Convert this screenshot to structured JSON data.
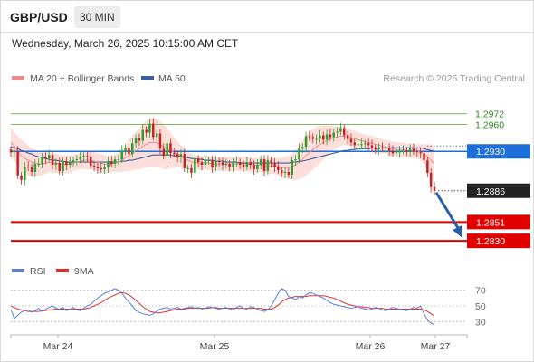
{
  "header": {
    "pair": "GBP/USD",
    "timeframe": "30 MIN",
    "datetime": "Wednesday, March 26, 2025 10:15:00 AM CET"
  },
  "legend": {
    "ma20_label": "MA 20 + Bollinger Bands",
    "ma50_label": "MA 50",
    "credit": "Research © 2025 Trading Central",
    "rsi_label": "RSI",
    "rsi_ma_label": "9MA"
  },
  "colors": {
    "ma20": "#f08a8a",
    "ma50": "#3a5f9e",
    "bollinger_fill": "#fbd9d4",
    "candle_up": "#2e9e2e",
    "candle_down": "#c92020",
    "resistance_line": "#6ab04c",
    "support_line": "#e00000",
    "current_level": "#1e6fd9",
    "forecast_arrow": "#2a5ea8",
    "last_price": "#222222",
    "rsi": "#5b7fd6",
    "rsi_ma": "#e03030"
  },
  "chart_data": [
    {
      "type": "candlestick",
      "title": "GBP/USD",
      "x_ticks": [
        "Mar 24",
        "Mar 25",
        "Mar 26",
        "Mar 27"
      ],
      "y_range": [
        1.2818,
        1.2998
      ],
      "price_levels": [
        {
          "kind": "resistance",
          "value": "1.2972"
        },
        {
          "kind": "resistance",
          "value": "1.2960"
        },
        {
          "kind": "current",
          "value": "1.2930"
        },
        {
          "kind": "last",
          "value": "1.2886"
        },
        {
          "kind": "support",
          "value": "1.2851"
        },
        {
          "kind": "support",
          "value": "1.2830"
        }
      ],
      "forecast": {
        "direction": "down",
        "from": 1.2886,
        "to": 1.283
      },
      "closes": [
        1.2929,
        1.293,
        1.2903,
        1.2898,
        1.2913,
        1.2912,
        1.2907,
        1.2916,
        1.2916,
        1.2924,
        1.2922,
        1.2926,
        1.2915,
        1.2917,
        1.2908,
        1.2919,
        1.2915,
        1.2918,
        1.292,
        1.2921,
        1.2924,
        1.2925,
        1.2924,
        1.2914,
        1.2913,
        1.2911,
        1.291,
        1.2912,
        1.2919,
        1.2916,
        1.2921,
        1.2921,
        1.2931,
        1.2934,
        1.2927,
        1.2939,
        1.2945,
        1.2942,
        1.2954,
        1.2951,
        1.2961,
        1.2946,
        1.295,
        1.2933,
        1.2925,
        1.2939,
        1.2928,
        1.2927,
        1.2923,
        1.2927,
        1.2911,
        1.2911,
        1.2906,
        1.2922,
        1.2918,
        1.2915,
        1.292,
        1.292,
        1.2912,
        1.2919,
        1.2918,
        1.2915,
        1.2916,
        1.2913,
        1.2917,
        1.2918,
        1.2915,
        1.2913,
        1.2918,
        1.2915,
        1.291,
        1.2915,
        1.2921,
        1.2908,
        1.292,
        1.2917,
        1.2913,
        1.2909,
        1.2906,
        1.2907,
        1.2904,
        1.292,
        1.2921,
        1.2933,
        1.2935,
        1.2947,
        1.2946,
        1.2944,
        1.2944,
        1.2948,
        1.2943,
        1.2949,
        1.2946,
        1.2951,
        1.2952,
        1.2956,
        1.2948,
        1.2944,
        1.294,
        1.2937,
        1.2938,
        1.2938,
        1.2939,
        1.2937,
        1.2934,
        1.2932,
        1.2934,
        1.2933,
        1.2934,
        1.2931,
        1.2928,
        1.2929,
        1.2931,
        1.2931,
        1.293,
        1.2933,
        1.293,
        1.2929,
        1.2928,
        1.292,
        1.2906,
        1.289,
        1.2886
      ],
      "ma20": [
        1.294,
        1.2936,
        1.293,
        1.2925,
        1.2922,
        1.292,
        1.2918,
        1.2917,
        1.2916,
        1.2916,
        1.2917,
        1.2918,
        1.2917,
        1.2917,
        1.2916,
        1.2916,
        1.2915,
        1.2916,
        1.2917,
        1.2918,
        1.2919,
        1.292,
        1.292,
        1.292,
        1.2919,
        1.2918,
        1.2917,
        1.2916,
        1.2916,
        1.2916,
        1.2917,
        1.2918,
        1.292,
        1.2923,
        1.2925,
        1.2928,
        1.2931,
        1.2933,
        1.2936,
        1.2938,
        1.294,
        1.294,
        1.294,
        1.2938,
        1.2935,
        1.2933,
        1.2931,
        1.2929,
        1.2927,
        1.2925,
        1.2922,
        1.292,
        1.2918,
        1.2918,
        1.2917,
        1.2917,
        1.2917,
        1.2917,
        1.2916,
        1.2916,
        1.2916,
        1.2916,
        1.2916,
        1.2916,
        1.2916,
        1.2916,
        1.2916,
        1.2916,
        1.2916,
        1.2915,
        1.2915,
        1.2915,
        1.2915,
        1.2914,
        1.2914,
        1.2914,
        1.2914,
        1.2913,
        1.2912,
        1.2912,
        1.2912,
        1.2913,
        1.2915,
        1.2918,
        1.2921,
        1.2925,
        1.2929,
        1.2932,
        1.2935,
        1.2938,
        1.294,
        1.2942,
        1.2944,
        1.2945,
        1.2946,
        1.2947,
        1.2947,
        1.2946,
        1.2945,
        1.2944,
        1.2943,
        1.2942,
        1.2941,
        1.294,
        1.2939,
        1.2938,
        1.2937,
        1.2936,
        1.2935,
        1.2934,
        1.2933,
        1.2932,
        1.2932,
        1.2932,
        1.2931,
        1.2931,
        1.293,
        1.293,
        1.2929,
        1.2927,
        1.2924,
        1.292,
        1.2916
      ],
      "bb_half_width": [
        0.0016,
        0.0016,
        0.0017,
        0.0018,
        0.0018,
        0.0017,
        0.0016,
        0.0015,
        0.0014,
        0.0013,
        0.0012,
        0.0011,
        0.0011,
        0.0011,
        0.001,
        0.001,
        0.001,
        0.001,
        0.0009,
        0.0009,
        0.0009,
        0.001,
        0.001,
        0.001,
        0.001,
        0.001,
        0.001,
        0.001,
        0.0009,
        0.0009,
        0.001,
        0.0011,
        0.0013,
        0.0015,
        0.0017,
        0.0019,
        0.0021,
        0.0023,
        0.0025,
        0.0026,
        0.0027,
        0.0027,
        0.0027,
        0.0026,
        0.0025,
        0.0023,
        0.002,
        0.0017,
        0.0014,
        0.0012,
        0.0011,
        0.001,
        0.0009,
        0.0008,
        0.0008,
        0.0008,
        0.0008,
        0.0008,
        0.0008,
        0.0008,
        0.0008,
        0.0008,
        0.0008,
        0.0008,
        0.0008,
        0.0008,
        0.0008,
        0.0008,
        0.0008,
        0.0008,
        0.0008,
        0.0008,
        0.0008,
        0.0008,
        0.0009,
        0.0009,
        0.0009,
        0.001,
        0.0011,
        0.0012,
        0.0013,
        0.0015,
        0.0017,
        0.0019,
        0.0021,
        0.0022,
        0.0023,
        0.0023,
        0.0022,
        0.0021,
        0.0019,
        0.0017,
        0.0015,
        0.0013,
        0.0012,
        0.0011,
        0.001,
        0.001,
        0.0009,
        0.0009,
        0.0008,
        0.0008,
        0.0008,
        0.0008,
        0.0008,
        0.0008,
        0.0008,
        0.0008,
        0.0008,
        0.0008,
        0.0008,
        0.0008,
        0.0008,
        0.0008,
        0.0008,
        0.0008,
        0.0008,
        0.0008,
        0.0009,
        0.0011,
        0.0014,
        0.0018,
        0.0021
      ],
      "ma50": [
        1.2935,
        1.2934,
        1.2933,
        1.2931,
        1.293,
        1.2928,
        1.2927,
        1.2925,
        1.2924,
        1.2923,
        1.2922,
        1.2921,
        1.292,
        1.292,
        1.2919,
        1.2919,
        1.2918,
        1.2918,
        1.2918,
        1.2918,
        1.2918,
        1.2918,
        1.2918,
        1.2918,
        1.2918,
        1.2918,
        1.2918,
        1.2918,
        1.2918,
        1.2918,
        1.2918,
        1.2918,
        1.2919,
        1.2919,
        1.292,
        1.292,
        1.2921,
        1.2922,
        1.2923,
        1.2924,
        1.2925,
        1.2926,
        1.2926,
        1.2926,
        1.2926,
        1.2926,
        1.2926,
        1.2925,
        1.2925,
        1.2924,
        1.2924,
        1.2923,
        1.2922,
        1.2922,
        1.2921,
        1.2921,
        1.292,
        1.292,
        1.292,
        1.2919,
        1.2919,
        1.2919,
        1.2918,
        1.2918,
        1.2918,
        1.2918,
        1.2917,
        1.2917,
        1.2917,
        1.2917,
        1.2917,
        1.2917,
        1.2917,
        1.2917,
        1.2917,
        1.2917,
        1.2917,
        1.2917,
        1.2917,
        1.2917,
        1.2917,
        1.2918,
        1.2918,
        1.2919,
        1.2919,
        1.292,
        1.2921,
        1.2922,
        1.2923,
        1.2924,
        1.2925,
        1.2926,
        1.2927,
        1.2928,
        1.2929,
        1.293,
        1.2931,
        1.2931,
        1.2932,
        1.2932,
        1.2933,
        1.2933,
        1.2933,
        1.2933,
        1.2934,
        1.2934,
        1.2934,
        1.2934,
        1.2934,
        1.2934,
        1.2934,
        1.2934,
        1.2934,
        1.2934,
        1.2934,
        1.2934,
        1.2934,
        1.2934,
        1.2934,
        1.2933,
        1.2932,
        1.2931,
        1.293
      ]
    },
    {
      "type": "line",
      "title": "RSI",
      "y_ticks": [
        70,
        50,
        30
      ],
      "y_range": [
        20,
        80
      ],
      "rsi": [
        46,
        34,
        38,
        42,
        44,
        45,
        42,
        44,
        47,
        43,
        46,
        48,
        50,
        47,
        46,
        48,
        44,
        46,
        48,
        45,
        44,
        47,
        50,
        52,
        56,
        60,
        63,
        66,
        68,
        70,
        72,
        70,
        66,
        60,
        55,
        50,
        44,
        42,
        40,
        39,
        38,
        40,
        43,
        46,
        47,
        48,
        46,
        47,
        48,
        46,
        47,
        48,
        49,
        47,
        48,
        46,
        47,
        49,
        48,
        47,
        46,
        47,
        48,
        46,
        45,
        48,
        50,
        47,
        46,
        49,
        48,
        46,
        44,
        43,
        45,
        50,
        58,
        66,
        72,
        70,
        62,
        60,
        58,
        62,
        60,
        64,
        67,
        66,
        64,
        62,
        60,
        57,
        54,
        52,
        51,
        50,
        49,
        48,
        47,
        48,
        49,
        47,
        46,
        45,
        46,
        48,
        47,
        45,
        44,
        46,
        48,
        47,
        46,
        45,
        44,
        46,
        48,
        47,
        50,
        40,
        32,
        28,
        26
      ],
      "rsi_9ma": [
        50,
        48,
        46,
        45,
        44,
        43,
        43,
        43,
        43,
        44,
        44,
        45,
        45,
        46,
        46,
        46,
        46,
        46,
        46,
        46,
        46,
        46,
        47,
        48,
        50,
        52,
        54,
        57,
        60,
        62,
        64,
        66,
        67,
        66,
        64,
        61,
        57,
        53,
        49,
        46,
        43,
        42,
        41,
        41,
        42,
        43,
        44,
        45,
        46,
        46,
        46,
        47,
        47,
        47,
        47,
        47,
        47,
        47,
        48,
        48,
        47,
        47,
        47,
        47,
        47,
        47,
        47,
        47,
        47,
        47,
        47,
        47,
        47,
        46,
        46,
        46,
        48,
        51,
        55,
        58,
        60,
        61,
        62,
        62,
        62,
        62,
        63,
        63,
        63,
        63,
        63,
        62,
        61,
        60,
        58,
        56,
        54,
        52,
        51,
        50,
        49,
        49,
        48,
        48,
        47,
        47,
        47,
        47,
        46,
        46,
        46,
        46,
        46,
        46,
        46,
        46,
        46,
        46,
        46,
        45,
        43,
        40,
        37
      ]
    }
  ]
}
